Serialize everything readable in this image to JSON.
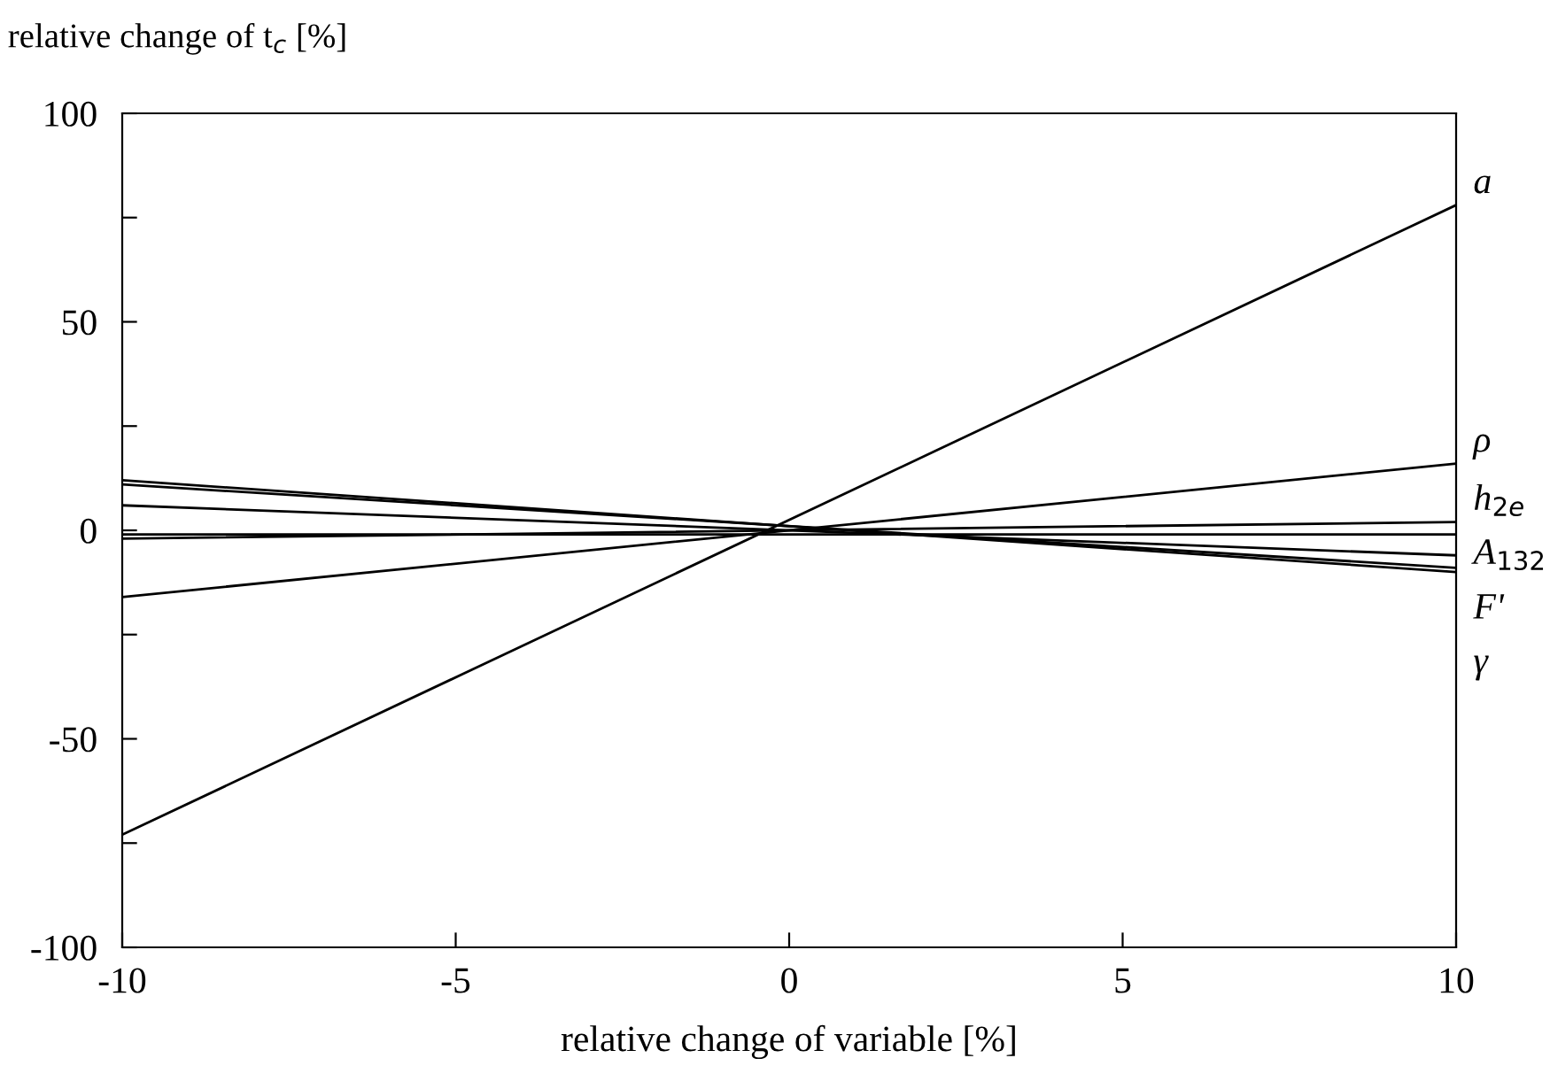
{
  "chart_data": {
    "type": "line",
    "ylabel": "relative change of t$_{c}$ [%]",
    "xlabel": "relative change of variable [%]",
    "x": [
      -10,
      10
    ],
    "series": [
      {
        "name": "a",
        "color": "#000000",
        "values": [
          -73,
          78
        ]
      },
      {
        "name": "ρ",
        "color": "#000000",
        "values": [
          -16,
          16
        ]
      },
      {
        "name": "h$_{2e}$",
        "color": "#000000",
        "values": [
          -2,
          2
        ]
      },
      {
        "name": "A$_{132}$",
        "color": "#000000",
        "values": [
          -1,
          -1
        ]
      },
      {
        "color": "#000000",
        "values": [
          6,
          -6
        ]
      },
      {
        "name": "F'",
        "color": "#000000",
        "values": [
          11,
          -9
        ]
      },
      {
        "name": "γ",
        "color": "#000000",
        "values": [
          12,
          -10
        ]
      }
    ],
    "xlim": [
      -10,
      10
    ],
    "xticks": [
      -10,
      -5,
      0,
      5,
      10
    ],
    "ylim": [
      -100,
      100
    ],
    "yticks": [
      -100,
      {
        "value": -75,
        "label": null
      },
      -50,
      {
        "value": -25,
        "label": null
      },
      0,
      {
        "value": 25,
        "label": null
      },
      50,
      {
        "value": 75,
        "label": null
      },
      100
    ],
    "grid": false,
    "legend": false,
    "marker": "none",
    "line_style": "solid"
  }
}
